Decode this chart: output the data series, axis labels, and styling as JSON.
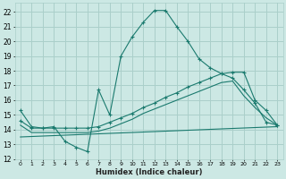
{
  "xlabel": "Humidex (Indice chaleur)",
  "xlim": [
    -0.5,
    23.5
  ],
  "ylim": [
    12,
    22.6
  ],
  "yticks": [
    12,
    13,
    14,
    15,
    16,
    17,
    18,
    19,
    20,
    21,
    22
  ],
  "xticks": [
    0,
    1,
    2,
    3,
    4,
    5,
    6,
    7,
    8,
    9,
    10,
    11,
    12,
    13,
    14,
    15,
    16,
    17,
    18,
    19,
    20,
    21,
    22,
    23
  ],
  "bg_color": "#cce8e4",
  "grid_color": "#aacfca",
  "line_color": "#1a7a6e",
  "curves": [
    {
      "x": [
        0,
        1,
        2,
        3,
        4,
        5,
        6,
        7,
        8,
        9,
        10,
        11,
        12,
        13,
        14,
        15,
        16,
        17,
        18,
        19,
        20,
        21,
        22,
        23
      ],
      "y": [
        15.3,
        14.2,
        14.1,
        14.2,
        13.2,
        12.8,
        12.5,
        16.7,
        15.0,
        19.0,
        20.3,
        21.3,
        22.1,
        22.1,
        21.0,
        20.0,
        18.8,
        18.2,
        17.8,
        17.5,
        16.7,
        15.8,
        14.5,
        14.3
      ],
      "has_markers": true
    },
    {
      "x": [
        0,
        1,
        2,
        3,
        4,
        5,
        6,
        7,
        8,
        9,
        10,
        11,
        12,
        13,
        14,
        15,
        16,
        17,
        18,
        19,
        20,
        21,
        22,
        23
      ],
      "y": [
        14.6,
        14.1,
        14.1,
        14.1,
        14.1,
        14.1,
        14.1,
        14.2,
        14.5,
        14.8,
        15.1,
        15.5,
        15.8,
        16.2,
        16.5,
        16.9,
        17.2,
        17.5,
        17.8,
        17.9,
        17.9,
        16.0,
        15.3,
        14.3
      ],
      "has_markers": true
    },
    {
      "x": [
        0,
        1,
        2,
        3,
        4,
        5,
        6,
        7,
        8,
        9,
        10,
        11,
        12,
        13,
        14,
        15,
        16,
        17,
        18,
        19,
        20,
        21,
        22,
        23
      ],
      "y": [
        14.3,
        13.8,
        13.8,
        13.8,
        13.8,
        13.8,
        13.8,
        13.9,
        14.1,
        14.4,
        14.7,
        15.1,
        15.4,
        15.7,
        16.0,
        16.3,
        16.6,
        16.9,
        17.2,
        17.3,
        16.3,
        15.5,
        14.8,
        14.3
      ],
      "has_markers": false
    },
    {
      "x": [
        0,
        23
      ],
      "y": [
        13.5,
        14.2
      ],
      "has_markers": false
    }
  ]
}
